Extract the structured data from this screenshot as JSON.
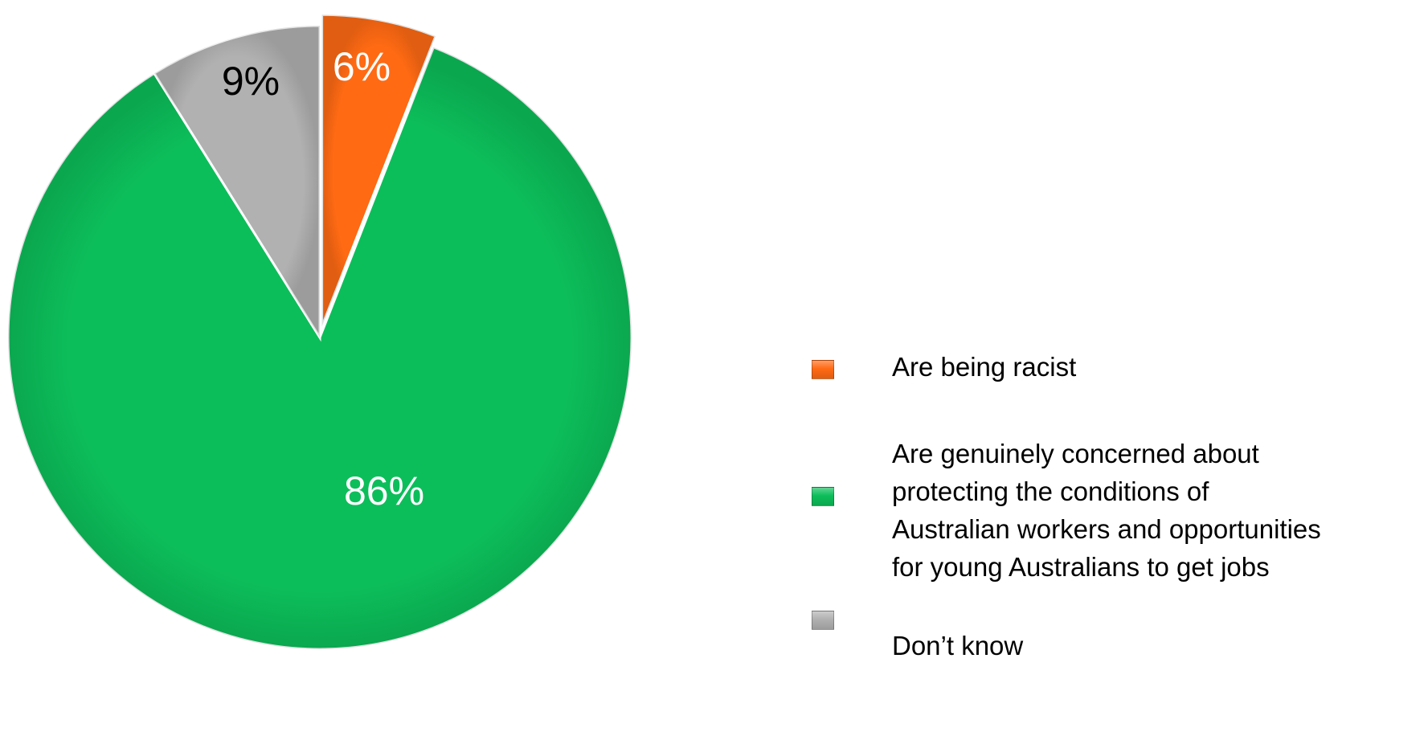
{
  "chart_data": {
    "type": "pie",
    "slices": [
      {
        "label": "Are being racist",
        "value": 6,
        "display": "6%",
        "color": "#FF6A13",
        "label_color": "#ffffff",
        "exploded": true
      },
      {
        "label": "Are genuinely concerned about protecting the conditions of Australian workers and opportunities for young Australians to get jobs",
        "value": 86,
        "display": "86%",
        "color": "#0CBE5A",
        "label_color": "#ffffff",
        "exploded": false
      },
      {
        "label": "Don’t know",
        "value": 9,
        "display": "9%",
        "color": "#B1B1B1",
        "label_color": "#000000",
        "exploded": false
      }
    ],
    "legend": [
      {
        "text": "Are being racist",
        "color": "#FF6A13"
      },
      {
        "text": "Are genuinely concerned about\nprotecting the conditions of\nAustralian workers and opportunities\nfor young Australians to get jobs",
        "color": "#0CBE5A"
      },
      {
        "text": "Don’t know",
        "color": "#B1B1B1"
      }
    ],
    "legend_position": "right"
  }
}
